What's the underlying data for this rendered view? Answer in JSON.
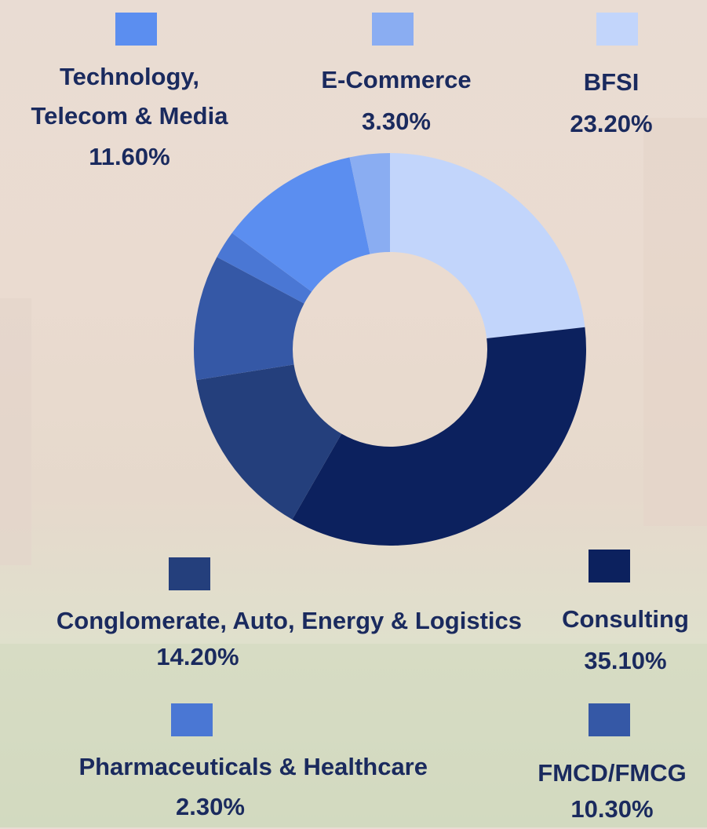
{
  "chart_data": {
    "type": "pie",
    "categories": [
      "BFSI",
      "Consulting",
      "Conglomerate, Auto, Energy & Logistics",
      "FMCD/FMCG",
      "Pharmaceuticals & Healthcare",
      "Technology, Telecom & Media",
      "E-Commerce"
    ],
    "values": [
      23.2,
      35.1,
      14.2,
      10.3,
      2.3,
      11.6,
      3.3
    ],
    "value_labels": [
      "23.20%",
      "35.10%",
      "14.20%",
      "10.30%",
      "2.30%",
      "11.60%",
      "3.30%"
    ],
    "colors": [
      "#c2d5fb",
      "#0c215e",
      "#243f7c",
      "#3558a6",
      "#4a77d4",
      "#5b8ef0",
      "#8aadf2"
    ]
  }
}
